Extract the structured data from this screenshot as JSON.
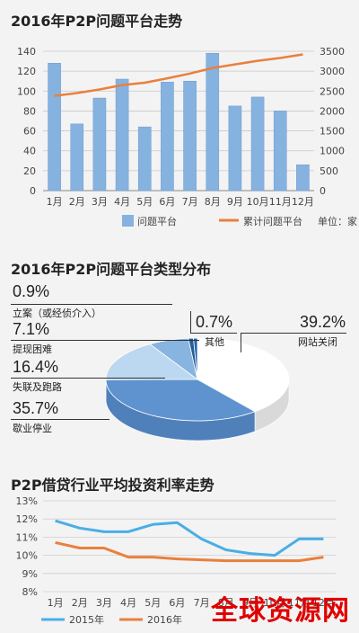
{
  "colors": {
    "bar": "#86b2e0",
    "bar_stroke": "#6a9bd1",
    "cum_line": "#e9803d",
    "line_2015": "#4aaee6",
    "line_2016": "#e9803d"
  },
  "chart1": {
    "title": "2016年P2P问题平台走势",
    "legend_bar": "问题平台",
    "legend_line": "累计问题平台",
    "unit": "单位：家"
  },
  "chart2": {
    "title": "2016年P2P问题平台类型分布",
    "labels": [
      {
        "pct": "0.9%",
        "name": "立案（或经侦介入）"
      },
      {
        "pct": "7.1%",
        "name": "提现困难"
      },
      {
        "pct": "16.4%",
        "name": "失联及跑路"
      },
      {
        "pct": "35.7%",
        "name": "歇业停业"
      },
      {
        "pct": "0.7%",
        "name": "其他"
      },
      {
        "pct": "39.2%",
        "name": "网站关闭"
      }
    ]
  },
  "chart3": {
    "title": "P2P借贷行业平均投资利率走势",
    "legend_2015": "2015年",
    "legend_2016": "2016年"
  },
  "watermark": "全球资源网",
  "chart_data": [
    {
      "type": "bar",
      "title": "2016年P2P问题平台走势",
      "categories": [
        "1月",
        "2月",
        "3月",
        "4月",
        "5月",
        "6月",
        "7月",
        "8月",
        "9月",
        "10月",
        "11月",
        "12月"
      ],
      "series": [
        {
          "name": "问题平台",
          "type": "bar",
          "axis": "left",
          "values": [
            128,
            67,
            93,
            112,
            64,
            109,
            110,
            138,
            85,
            94,
            80,
            26
          ]
        },
        {
          "name": "累计问题平台",
          "type": "line",
          "axis": "right",
          "values": [
            2380,
            2450,
            2540,
            2650,
            2710,
            2820,
            2940,
            3080,
            3170,
            3260,
            3330,
            3420
          ]
        }
      ],
      "y_left_ticks": [
        0,
        20,
        40,
        60,
        80,
        100,
        120,
        140
      ],
      "y_right_ticks": [
        0,
        500,
        1000,
        1500,
        2000,
        2500,
        3000,
        3500
      ],
      "ylim_left": [
        0,
        140
      ],
      "ylim_right": [
        0,
        3500
      ],
      "unit": "单位：家"
    },
    {
      "type": "pie",
      "title": "2016年P2P问题平台类型分布",
      "slices": [
        {
          "name": "网站关闭",
          "value": 39.2
        },
        {
          "name": "歇业停业",
          "value": 35.7
        },
        {
          "name": "失联及跑路",
          "value": 16.4
        },
        {
          "name": "提现困难",
          "value": 7.1
        },
        {
          "name": "立案（或经侦介入）",
          "value": 0.9
        },
        {
          "name": "其他",
          "value": 0.7
        }
      ]
    },
    {
      "type": "line",
      "title": "P2P借贷行业平均投资利率走势",
      "categories": [
        "1月",
        "2月",
        "3月",
        "4月",
        "5月",
        "6月",
        "7月",
        "8月",
        "9月",
        "10月",
        "11月",
        "12月"
      ],
      "series": [
        {
          "name": "2015年",
          "values": [
            11.9,
            11.5,
            11.3,
            11.3,
            11.7,
            11.8,
            10.9,
            10.3,
            10.1,
            10.0,
            10.9,
            10.9
          ]
        },
        {
          "name": "2016年",
          "values": [
            10.7,
            10.4,
            10.4,
            9.9,
            9.9,
            9.8,
            9.75,
            9.7,
            9.7,
            9.7,
            9.7,
            9.9
          ]
        }
      ],
      "y_ticks": [
        "8%",
        "9%",
        "10%",
        "11%",
        "12%",
        "13%"
      ],
      "ylim": [
        8,
        13
      ]
    }
  ]
}
